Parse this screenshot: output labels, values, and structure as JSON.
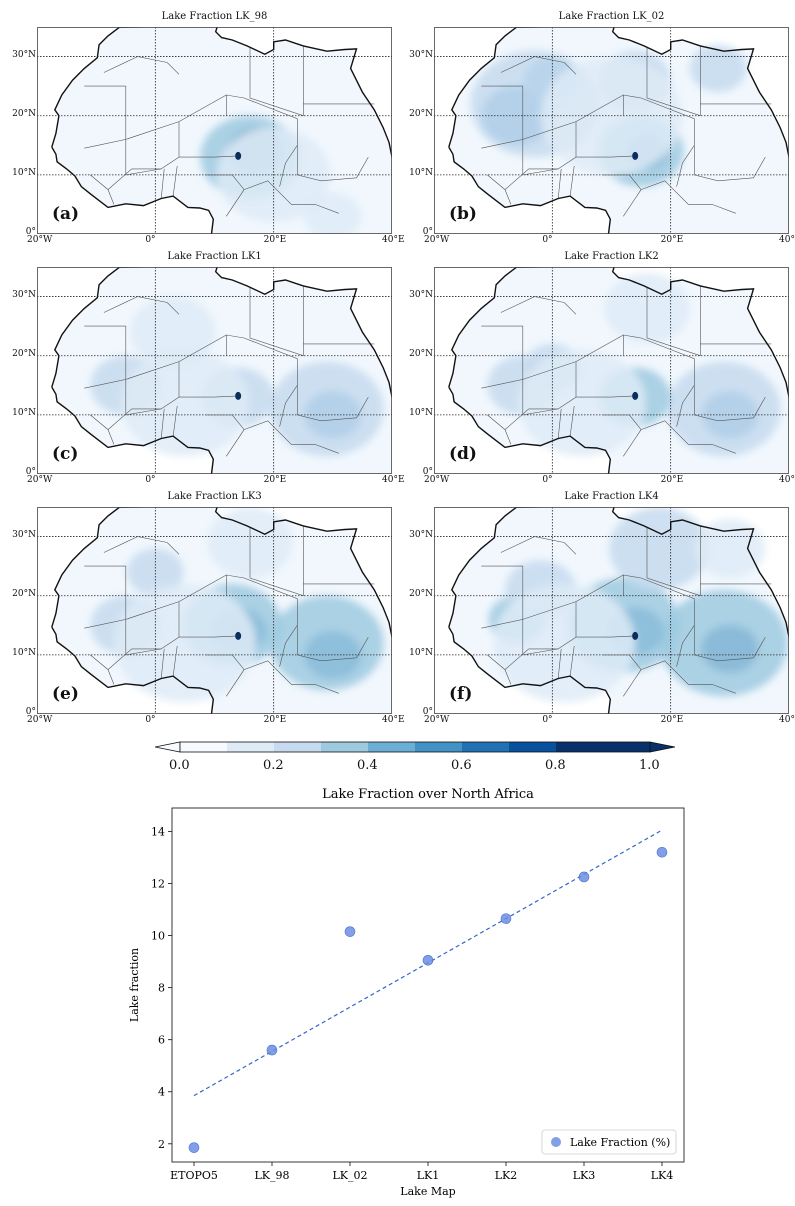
{
  "maps": {
    "tick_labels": {
      "lat": [
        "0°",
        "10°N",
        "20°N",
        "30°N"
      ],
      "lon": [
        "20°W",
        "0°",
        "20°E",
        "40°E"
      ]
    },
    "panels": [
      {
        "title": "Lake Fraction LK_98",
        "letter": "(a)",
        "blobs": [
          {
            "lon": 17,
            "lat": 14,
            "r": 4,
            "v": 0.8
          },
          {
            "lon": 16,
            "lat": 13,
            "r": 7,
            "v": 0.3
          },
          {
            "lon": 20,
            "lat": 10,
            "r": 8,
            "v": 0.12
          },
          {
            "lon": 30,
            "lat": 3,
            "r": 4,
            "v": 0.15
          }
        ]
      },
      {
        "title": "Lake Fraction LK_02",
        "letter": "(b)",
        "blobs": [
          {
            "lon": -6,
            "lat": 20,
            "r": 5,
            "v": 0.5
          },
          {
            "lon": 0,
            "lat": 26,
            "r": 4,
            "v": 0.45
          },
          {
            "lon": -3,
            "lat": 22,
            "r": 9,
            "v": 0.2
          },
          {
            "lon": 16,
            "lat": 14,
            "r": 3,
            "v": 0.7
          },
          {
            "lon": 15,
            "lat": 14,
            "r": 6,
            "v": 0.35
          },
          {
            "lon": 14,
            "lat": 26,
            "r": 5,
            "v": 0.25
          },
          {
            "lon": 28,
            "lat": 28,
            "r": 4,
            "v": 0.2
          },
          {
            "lon": 10,
            "lat": 20,
            "r": 10,
            "v": 0.12
          }
        ]
      },
      {
        "title": "Lake Fraction LK1",
        "letter": "(c)",
        "blobs": [
          {
            "lon": 30,
            "lat": 10,
            "r": 4,
            "v": 0.5
          },
          {
            "lon": 29,
            "lat": 11,
            "r": 8,
            "v": 0.25
          },
          {
            "lon": 14,
            "lat": 13,
            "r": 5,
            "v": 0.25
          },
          {
            "lon": -5,
            "lat": 15,
            "r": 5,
            "v": 0.2
          },
          {
            "lon": 5,
            "lat": 12,
            "r": 9,
            "v": 0.12
          },
          {
            "lon": 3,
            "lat": 24,
            "r": 6,
            "v": 0.1
          }
        ]
      },
      {
        "title": "Lake Fraction LK2",
        "letter": "(d)",
        "blobs": [
          {
            "lon": 30,
            "lat": 10,
            "r": 4,
            "v": 0.5
          },
          {
            "lon": 29,
            "lat": 11,
            "r": 8,
            "v": 0.25
          },
          {
            "lon": 14,
            "lat": 13,
            "r": 5,
            "v": 0.3
          },
          {
            "lon": -5,
            "lat": 15,
            "r": 5,
            "v": 0.25
          },
          {
            "lon": 0,
            "lat": 18,
            "r": 4,
            "v": 0.2
          },
          {
            "lon": 5,
            "lat": 12,
            "r": 9,
            "v": 0.12
          },
          {
            "lon": 16,
            "lat": 28,
            "r": 6,
            "v": 0.1
          }
        ]
      },
      {
        "title": "Lake Fraction LK3",
        "letter": "(e)",
        "blobs": [
          {
            "lon": 30,
            "lat": 10,
            "r": 4,
            "v": 0.65
          },
          {
            "lon": 29,
            "lat": 12,
            "r": 8,
            "v": 0.3
          },
          {
            "lon": 14,
            "lat": 14,
            "r": 4,
            "v": 0.6
          },
          {
            "lon": 13,
            "lat": 15,
            "r": 7,
            "v": 0.3
          },
          {
            "lon": 0,
            "lat": 24,
            "r": 4,
            "v": 0.25
          },
          {
            "lon": -5,
            "lat": 15,
            "r": 5,
            "v": 0.25
          },
          {
            "lon": 5,
            "lat": 12,
            "r": 10,
            "v": 0.15
          },
          {
            "lon": 16,
            "lat": 29,
            "r": 6,
            "v": 0.15
          }
        ]
      },
      {
        "title": "Lake Fraction LK4",
        "letter": "(f)",
        "blobs": [
          {
            "lon": 30,
            "lat": 11,
            "r": 4,
            "v": 0.7
          },
          {
            "lon": 29,
            "lat": 12,
            "r": 9,
            "v": 0.35
          },
          {
            "lon": 14,
            "lat": 14,
            "r": 4,
            "v": 0.65
          },
          {
            "lon": 12,
            "lat": 15,
            "r": 8,
            "v": 0.35
          },
          {
            "lon": -6,
            "lat": 16,
            "r": 4,
            "v": 0.35
          },
          {
            "lon": -2,
            "lat": 21,
            "r": 5,
            "v": 0.25
          },
          {
            "lon": 2,
            "lat": 12,
            "r": 10,
            "v": 0.18
          },
          {
            "lon": 18,
            "lat": 28,
            "r": 7,
            "v": 0.2
          },
          {
            "lon": 30,
            "lat": 28,
            "r": 5,
            "v": 0.15
          }
        ]
      }
    ]
  },
  "colorbar": {
    "ticks": [
      "0.0",
      "0.2",
      "0.4",
      "0.6",
      "0.8",
      "1.0"
    ],
    "levels": [
      0.0,
      0.1,
      0.2,
      0.3,
      0.4,
      0.5,
      0.6,
      0.7,
      0.8,
      0.9,
      1.0
    ],
    "colors": [
      "#f7fbff",
      "#deebf7",
      "#c6dbef",
      "#9ecae1",
      "#6baed6",
      "#4292c6",
      "#2171b5",
      "#08519c",
      "#08306b",
      "#08306b"
    ]
  },
  "chart_data": {
    "type": "scatter",
    "title": "Lake Fraction over North Africa",
    "xlabel": "Lake Map",
    "ylabel": "Lake fraction",
    "categories": [
      "ETOPO5",
      "LK_98",
      "LK_02",
      "LK1",
      "LK2",
      "LK3",
      "LK4"
    ],
    "series": [
      {
        "name": "Lake Fraction (%)",
        "values": [
          1.85,
          5.6,
          10.15,
          9.05,
          10.65,
          12.25,
          13.2
        ],
        "color": "#6b8de3"
      }
    ],
    "trendline": {
      "start": 3.85,
      "end": 14.05,
      "color": "#3366cc",
      "style": "dashed"
    },
    "yticks": [
      "2",
      "4",
      "6",
      "8",
      "10",
      "12",
      "14"
    ],
    "ylim": [
      1.3,
      14.9
    ],
    "legend": "lower-right"
  }
}
